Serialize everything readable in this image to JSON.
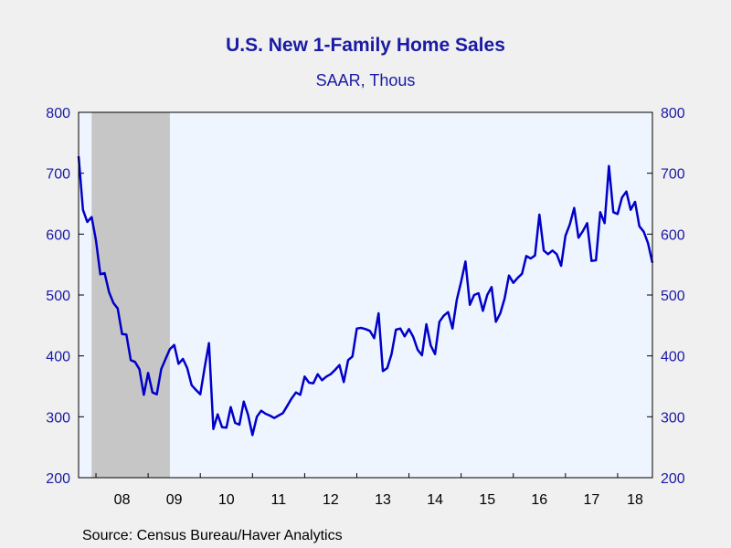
{
  "chart_data": {
    "type": "line",
    "title": "U.S. New 1-Family Home Sales",
    "subtitle": "SAAR, Thous",
    "source": "Source:  Census Bureau/Haver Analytics",
    "ylim": [
      200,
      800
    ],
    "y_ticks": [
      200,
      300,
      400,
      500,
      600,
      700,
      800
    ],
    "y_tick_labels": [
      "200",
      "300",
      "400",
      "500",
      "600",
      "700",
      "800"
    ],
    "x_start": "2007-09",
    "x_end": "2018-09",
    "x_tick_labels": [
      "08",
      "09",
      "10",
      "11",
      "12",
      "13",
      "14",
      "15",
      "16",
      "17",
      "18"
    ],
    "recession": {
      "start": "2007-12",
      "end": "2009-06"
    },
    "series": [
      {
        "name": "U.S. New 1-Family Home Sales",
        "color": "#0000c8",
        "values": [
          728,
          640,
          620,
          628,
          590,
          534,
          536,
          505,
          487,
          478,
          436,
          435,
          393,
          390,
          378,
          336,
          372,
          340,
          337,
          378,
          395,
          411,
          418,
          387,
          395,
          380,
          352,
          344,
          337,
          381,
          421,
          280,
          304,
          283,
          282,
          316,
          290,
          287,
          325,
          303,
          270,
          300,
          310,
          305,
          302,
          298,
          302,
          306,
          318,
          330,
          340,
          336,
          366,
          356,
          355,
          370,
          360,
          366,
          370,
          377,
          385,
          357,
          393,
          399,
          445,
          446,
          444,
          441,
          429,
          470,
          375,
          380,
          403,
          443,
          445,
          432,
          444,
          431,
          410,
          401,
          452,
          417,
          403,
          456,
          466,
          472,
          445,
          492,
          522,
          555,
          484,
          500,
          503,
          474,
          500,
          513,
          456,
          470,
          494,
          532,
          520,
          528,
          535,
          564,
          560,
          565,
          632,
          573,
          567,
          573,
          567,
          548,
          597,
          616,
          643,
          594,
          605,
          618,
          556,
          557,
          636,
          618,
          712,
          636,
          633,
          660,
          670,
          640,
          653,
          613,
          604,
          585,
          553
        ]
      }
    ],
    "grid": false,
    "legend": "none"
  },
  "colors": {
    "background": "#f0f0f0",
    "plot_background": "#eef5ff",
    "recession_shade": "#c6c6c6",
    "axis_text": "#1a1aa6",
    "line": "#0000c8"
  }
}
